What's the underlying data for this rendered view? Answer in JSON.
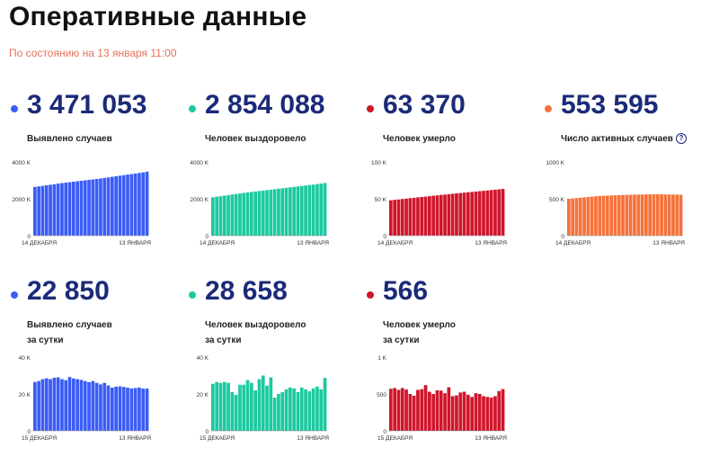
{
  "header": {
    "title": "Оперативные данные",
    "subtitle": "По состоянию на 13 января 11:00"
  },
  "cards": [
    {
      "value": "3 471 053",
      "label": [
        "Выявлено случаев"
      ],
      "help": false,
      "color": "#3b5cf6",
      "chart_data": {
        "type": "bar",
        "ylim": [
          0,
          4000
        ],
        "yticks": [
          "4000 K",
          "2000 K",
          "0"
        ],
        "ytick_values": [
          4000,
          2000,
          0
        ],
        "x_start": "14 ДЕКАБРЯ",
        "x_end": "13 ЯНВАРЯ",
        "values": [
          2640,
          2670,
          2700,
          2730,
          2760,
          2790,
          2820,
          2850,
          2875,
          2900,
          2925,
          2950,
          2975,
          3000,
          3025,
          3050,
          3075,
          3100,
          3130,
          3160,
          3190,
          3220,
          3250,
          3280,
          3310,
          3340,
          3370,
          3400,
          3430,
          3471
        ]
      }
    },
    {
      "value": "2 854 088",
      "label": [
        "Человек выздоровело"
      ],
      "help": false,
      "color": "#1cc9a0",
      "chart_data": {
        "type": "bar",
        "ylim": [
          0,
          4000
        ],
        "yticks": [
          "4000 K",
          "2000 K",
          "0"
        ],
        "ytick_values": [
          4000,
          2000,
          0
        ],
        "x_start": "14 ДЕКАБРЯ",
        "x_end": "13 ЯНВАРЯ",
        "values": [
          2080,
          2110,
          2140,
          2170,
          2200,
          2230,
          2260,
          2290,
          2320,
          2345,
          2370,
          2395,
          2420,
          2445,
          2470,
          2495,
          2520,
          2545,
          2570,
          2595,
          2620,
          2645,
          2670,
          2695,
          2720,
          2745,
          2770,
          2795,
          2825,
          2854
        ]
      }
    },
    {
      "value": "63 370",
      "label": [
        "Человек умерло"
      ],
      "help": false,
      "color": "#d0152b",
      "chart_data": {
        "type": "bar",
        "ylim": [
          0,
          100
        ],
        "yticks": [
          "100 K",
          "50 K",
          "0"
        ],
        "ytick_values": [
          100,
          50,
          0
        ],
        "x_start": "14 ДЕКАБРЯ",
        "x_end": "13 ЯНВАРЯ",
        "values": [
          48.0,
          48.6,
          49.1,
          49.7,
          50.2,
          50.8,
          51.3,
          51.9,
          52.4,
          53.0,
          53.5,
          54.1,
          54.6,
          55.2,
          55.7,
          56.3,
          56.8,
          57.3,
          57.8,
          58.3,
          58.8,
          59.3,
          59.8,
          60.3,
          60.8,
          61.3,
          61.8,
          62.3,
          62.8,
          63.4
        ]
      }
    },
    {
      "value": "553 595",
      "label": [
        "Число активных случаев"
      ],
      "help": true,
      "help_symbol": "?",
      "color": "#f5723a",
      "chart_data": {
        "type": "bar",
        "ylim": [
          0,
          1000
        ],
        "yticks": [
          "1000 K",
          "500 K",
          "0"
        ],
        "ytick_values": [
          1000,
          500,
          0
        ],
        "x_start": "14 ДЕКАБРЯ",
        "x_end": "13 ЯНВАРЯ",
        "values": [
          500,
          505,
          510,
          515,
          520,
          525,
          530,
          535,
          538,
          540,
          542,
          545,
          547,
          550,
          552,
          553,
          555,
          556,
          557,
          558,
          559,
          560,
          560,
          561,
          560,
          559,
          558,
          557,
          556,
          554
        ]
      }
    },
    {
      "value": "22 850",
      "label": [
        "Выявлено случаев",
        "за сутки"
      ],
      "help": false,
      "color": "#3b5cf6",
      "chart_data": {
        "type": "bar",
        "ylim": [
          0,
          40
        ],
        "yticks": [
          "40 K",
          "20 K",
          "0"
        ],
        "ytick_values": [
          40,
          20,
          0
        ],
        "x_start": "15 ДЕКАБРЯ",
        "x_end": "13 ЯНВАРЯ",
        "values": [
          26.5,
          27.0,
          28.0,
          28.5,
          28.0,
          28.8,
          29.0,
          28.0,
          27.5,
          29.2,
          28.4,
          28.0,
          27.6,
          27.0,
          26.4,
          27.0,
          26.0,
          25.2,
          26.0,
          24.6,
          23.4,
          23.9,
          24.1,
          23.8,
          23.4,
          23.0,
          23.2,
          23.5,
          22.9,
          22.9
        ]
      }
    },
    {
      "value": "28 658",
      "label": [
        "Человек выздоровело",
        "за сутки"
      ],
      "help": false,
      "color": "#1cc9a0",
      "chart_data": {
        "type": "bar",
        "ylim": [
          0,
          40
        ],
        "yticks": [
          "40 K",
          "20 K",
          "0"
        ],
        "ytick_values": [
          40,
          20,
          0
        ],
        "x_start": "15 ДЕКАБРЯ",
        "x_end": "13 ЯНВАРЯ",
        "values": [
          25.5,
          26.5,
          26.0,
          26.5,
          26.0,
          21.0,
          19.5,
          25.0,
          25.0,
          27.5,
          26.0,
          22.0,
          28.0,
          30.0,
          24.5,
          29.0,
          18.0,
          20.0,
          21.0,
          22.5,
          23.5,
          23.0,
          21.0,
          23.5,
          22.5,
          21.5,
          23.0,
          24.0,
          22.5,
          28.7
        ]
      }
    },
    {
      "value": "566",
      "label": [
        "Человек умерло",
        "за сутки"
      ],
      "help": false,
      "color": "#d0152b",
      "chart_data": {
        "type": "bar",
        "ylim": [
          0,
          1000
        ],
        "yticks": [
          "1 K",
          "500",
          "0"
        ],
        "ytick_values": [
          1000,
          500,
          0
        ],
        "x_start": "15 ДЕКАБРЯ",
        "x_end": "13 ЯНВАРЯ",
        "values": [
          570,
          580,
          555,
          580,
          560,
          500,
          475,
          555,
          565,
          620,
          530,
          500,
          550,
          545,
          510,
          590,
          470,
          480,
          520,
          530,
          490,
          460,
          510,
          500,
          470,
          460,
          450,
          470,
          540,
          566
        ]
      }
    }
  ]
}
